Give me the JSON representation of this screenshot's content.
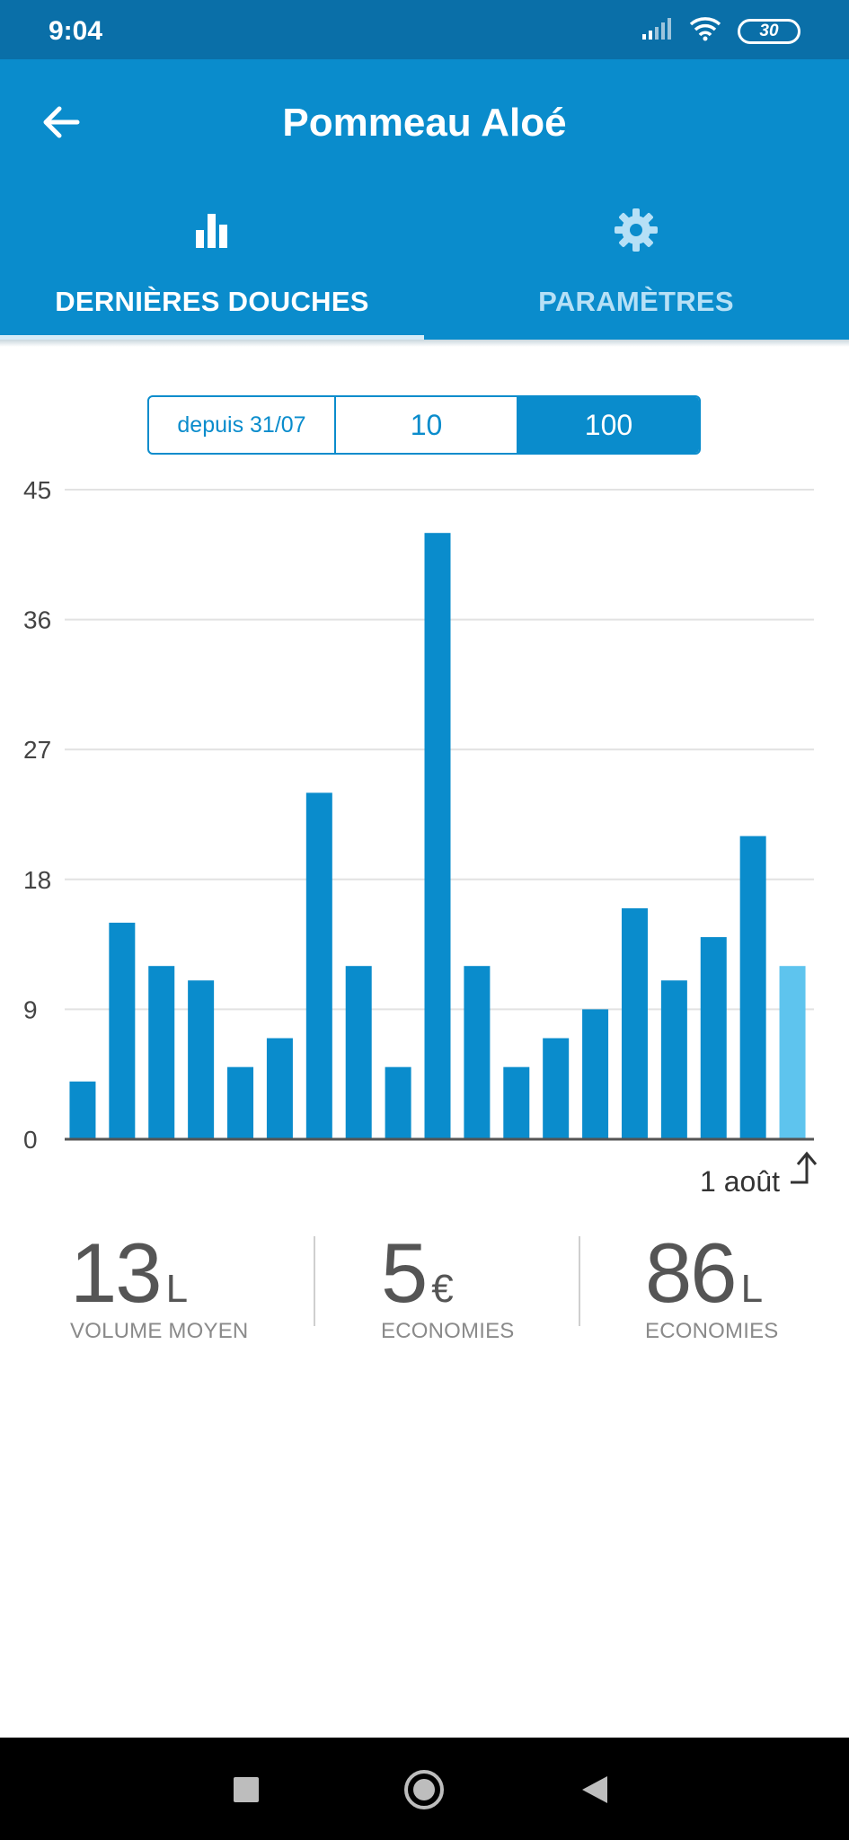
{
  "status": {
    "time": "9:04",
    "battery": "30",
    "icons": [
      "signal-icon",
      "wifi-icon",
      "battery-icon"
    ]
  },
  "header": {
    "title": "Pommeau Aloé",
    "back_icon": "arrow-left-icon"
  },
  "tabs": [
    {
      "label": "DERNIÈRES DOUCHES",
      "icon": "bar-chart-icon",
      "active": true
    },
    {
      "label": "PARAMÈTRES",
      "icon": "gear-icon",
      "active": false
    }
  ],
  "filter": {
    "options": [
      "depuis 31/07",
      "10",
      "100"
    ],
    "selected": "100"
  },
  "chart_data": {
    "type": "bar",
    "ylim": [
      0,
      45
    ],
    "yticks": [
      "45",
      "36",
      "27",
      "18",
      "9",
      "0"
    ],
    "values": [
      4,
      15,
      12,
      11,
      5,
      7,
      24,
      12,
      5,
      42,
      12,
      5,
      7,
      9,
      16,
      11,
      14,
      21,
      12
    ],
    "highlight_last": true,
    "grid": true,
    "x_end_label": "1 août",
    "colors": {
      "bar": "#0a8ccc",
      "last": "#5ec4ee",
      "grid": "#e2e2e2",
      "axis": "#555555"
    }
  },
  "stats": [
    {
      "value": "13",
      "unit": "L",
      "caption": "VOLUME MOYEN"
    },
    {
      "value": "5",
      "unit": "€",
      "caption": "ECONOMIES"
    },
    {
      "value": "86",
      "unit": "L",
      "caption": "ECONOMIES"
    }
  ],
  "navbar": {
    "icons": [
      "recents-square-icon",
      "home-circle-icon",
      "back-triangle-icon"
    ]
  }
}
